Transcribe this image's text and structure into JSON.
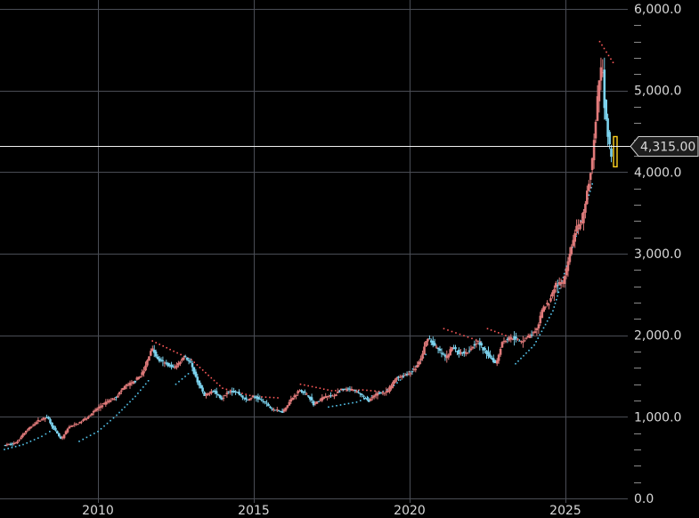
{
  "chart_data": {
    "type": "candlestick",
    "price_scale": "linear",
    "ylim": [
      0,
      6000
    ],
    "xlim": [
      2007.0,
      2027.0
    ],
    "y_ticks": [
      {
        "value": 0,
        "label": "0.0"
      },
      {
        "value": 1000,
        "label": "1,000.0"
      },
      {
        "value": 2000,
        "label": "2,000.0"
      },
      {
        "value": 3000,
        "label": "3,000.0"
      },
      {
        "value": 4000,
        "label": "4,000.0"
      },
      {
        "value": 5000,
        "label": "5,000.0"
      },
      {
        "value": 6000,
        "label": "6,000.0"
      }
    ],
    "x_ticks": [
      {
        "value": 2010,
        "label": "2010"
      },
      {
        "value": 2015,
        "label": "2015"
      },
      {
        "value": 2020,
        "label": "2020"
      },
      {
        "value": 2025,
        "label": "2025"
      }
    ],
    "last_price": {
      "value": 4315.0,
      "label": "4,315.00"
    },
    "grid": true,
    "colors": {
      "background": "#000000",
      "grid": "#4a4d55",
      "up_candle": "#e07a7a",
      "down_candle": "#7cd3ee",
      "last_candle": "#ffd21f",
      "price_line": "#f0f0f0",
      "resistance_dots": "#ff5a5a",
      "support_dots": "#55c8f0",
      "axis_text": "#d8d8d8"
    },
    "price_path": [
      [
        2007.0,
        650
      ],
      [
        2007.4,
        680
      ],
      [
        2007.7,
        820
      ],
      [
        2008.1,
        950
      ],
      [
        2008.4,
        1000
      ],
      [
        2008.6,
        860
      ],
      [
        2008.85,
        720
      ],
      [
        2009.1,
        880
      ],
      [
        2009.4,
        920
      ],
      [
        2009.7,
        1000
      ],
      [
        2010.0,
        1100
      ],
      [
        2010.3,
        1180
      ],
      [
        2010.6,
        1240
      ],
      [
        2010.9,
        1380
      ],
      [
        2011.2,
        1430
      ],
      [
        2011.5,
        1560
      ],
      [
        2011.75,
        1850
      ],
      [
        2011.95,
        1700
      ],
      [
        2012.2,
        1650
      ],
      [
        2012.5,
        1600
      ],
      [
        2012.8,
        1750
      ],
      [
        2013.0,
        1650
      ],
      [
        2013.2,
        1450
      ],
      [
        2013.45,
        1250
      ],
      [
        2013.7,
        1330
      ],
      [
        2014.0,
        1220
      ],
      [
        2014.2,
        1320
      ],
      [
        2014.5,
        1300
      ],
      [
        2014.8,
        1200
      ],
      [
        2015.0,
        1250
      ],
      [
        2015.3,
        1200
      ],
      [
        2015.6,
        1100
      ],
      [
        2015.95,
        1060
      ],
      [
        2016.2,
        1200
      ],
      [
        2016.5,
        1330
      ],
      [
        2016.8,
        1250
      ],
      [
        2016.95,
        1150
      ],
      [
        2017.3,
        1250
      ],
      [
        2017.6,
        1260
      ],
      [
        2017.8,
        1330
      ],
      [
        2018.1,
        1340
      ],
      [
        2018.4,
        1300
      ],
      [
        2018.7,
        1190
      ],
      [
        2019.0,
        1290
      ],
      [
        2019.3,
        1300
      ],
      [
        2019.6,
        1480
      ],
      [
        2019.95,
        1520
      ],
      [
        2020.2,
        1580
      ],
      [
        2020.4,
        1720
      ],
      [
        2020.6,
        1980
      ],
      [
        2020.8,
        1880
      ],
      [
        2021.0,
        1800
      ],
      [
        2021.2,
        1720
      ],
      [
        2021.4,
        1860
      ],
      [
        2021.6,
        1780
      ],
      [
        2021.9,
        1800
      ],
      [
        2022.2,
        1930
      ],
      [
        2022.4,
        1820
      ],
      [
        2022.6,
        1740
      ],
      [
        2022.8,
        1650
      ],
      [
        2023.0,
        1920
      ],
      [
        2023.3,
        1980
      ],
      [
        2023.6,
        1920
      ],
      [
        2023.85,
        1990
      ],
      [
        2024.1,
        2050
      ],
      [
        2024.3,
        2330
      ],
      [
        2024.5,
        2400
      ],
      [
        2024.7,
        2620
      ],
      [
        2024.95,
        2640
      ],
      [
        2025.15,
        2950
      ],
      [
        2025.35,
        3300
      ],
      [
        2025.55,
        3350
      ],
      [
        2025.75,
        3800
      ],
      [
        2025.9,
        4200
      ],
      [
        2026.0,
        4600
      ],
      [
        2026.1,
        5100
      ],
      [
        2026.2,
        5350
      ],
      [
        2026.3,
        4700
      ],
      [
        2026.4,
        4450
      ],
      [
        2026.5,
        4150
      ],
      [
        2026.6,
        4315
      ]
    ],
    "resistance_lines": [
      [
        [
          2011.75,
          1930
        ],
        [
          2013.0,
          1700
        ],
        [
          2014.0,
          1350
        ],
        [
          2015.0,
          1250
        ],
        [
          2015.9,
          1230
        ]
      ],
      [
        [
          2016.5,
          1400
        ],
        [
          2017.5,
          1320
        ],
        [
          2018.5,
          1330
        ],
        [
          2019.4,
          1300
        ]
      ],
      [
        [
          2021.1,
          2080
        ],
        [
          2022.0,
          1960
        ],
        [
          2022.4,
          1900
        ]
      ],
      [
        [
          2022.5,
          2080
        ],
        [
          2023.2,
          1980
        ]
      ],
      [
        [
          2026.1,
          5600
        ],
        [
          2026.6,
          5300
        ]
      ]
    ],
    "support_lines": [
      [
        [
          2007.0,
          600
        ],
        [
          2007.6,
          660
        ],
        [
          2008.2,
          760
        ],
        [
          2008.7,
          880
        ]
      ],
      [
        [
          2009.4,
          700
        ],
        [
          2010.0,
          820
        ],
        [
          2010.6,
          1020
        ],
        [
          2011.2,
          1250
        ],
        [
          2011.7,
          1480
        ]
      ],
      [
        [
          2012.5,
          1400
        ],
        [
          2013.0,
          1560
        ]
      ],
      [
        [
          2017.4,
          1120
        ],
        [
          2018.3,
          1180
        ],
        [
          2019.4,
          1350
        ],
        [
          2020.2,
          1620
        ],
        [
          2020.6,
          1800
        ]
      ],
      [
        [
          2023.4,
          1650
        ],
        [
          2024.0,
          1880
        ],
        [
          2024.6,
          2300
        ],
        [
          2025.0,
          2800
        ],
        [
          2025.5,
          3400
        ],
        [
          2025.9,
          3900
        ]
      ]
    ]
  }
}
